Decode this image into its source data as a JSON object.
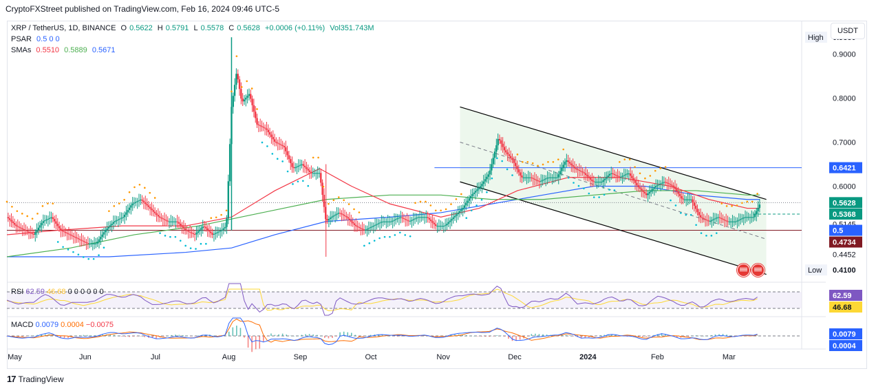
{
  "header": {
    "caption": "CryptoFXStreet published on TradingView.com, Feb 16, 2024 09:46 UTC-5"
  },
  "legend": {
    "symbol": "XRP / TetherUS, 1D, BINANCE",
    "open_label": "O",
    "open": "0.5622",
    "high_label": "H",
    "high": "0.5791",
    "low_label": "L",
    "low": "0.5578",
    "close_label": "C",
    "close": "0.5628",
    "change": "+0.0006 (+0.11%)",
    "volume": "Vol351.743M",
    "psar_label": "PSAR",
    "psar_args": "0.5  0  0",
    "sma_label": "SMAs",
    "sma1": "0.5510",
    "sma2": "0.5889",
    "sma3": "0.5671"
  },
  "currency_button": "USDT",
  "rsi": {
    "label": "RSI",
    "value": "62.59",
    "sma": "46.68",
    "args": "0  0  0  0  0  0"
  },
  "macd": {
    "label": "MACD",
    "macd": "0.0079",
    "signal": "0.0004",
    "hist": "−0.0075"
  },
  "footer": {
    "logo_text": "TradingView",
    "logo_mark": "17"
  },
  "colors": {
    "up": "#089981",
    "down": "#f23645",
    "psar": "#ff9800",
    "sma1": "#f23645",
    "sma2": "#4caf50",
    "sma3": "#2962ff",
    "channel": "#000000",
    "level": "#2962ff",
    "support": "#801922",
    "rsi": "#7e57c2",
    "rsi_ma": "#fdd835",
    "macd": "#2962ff",
    "signal": "#ff6d00"
  },
  "chart_data": {
    "type": "candlestick",
    "title": "XRP / TetherUS, 1D, BINANCE",
    "x_ticks": [
      "May",
      "Jun",
      "Jul",
      "Aug",
      "Sep",
      "Oct",
      "Nov",
      "Dec",
      "2024",
      "Feb",
      "Mar"
    ],
    "y_ticks": [
      "0.9000",
      "0.8000",
      "0.7000",
      "0.6000",
      "0.5145",
      "0.4452"
    ],
    "ylim": [
      0.39,
      0.96
    ],
    "price_labels": [
      {
        "text": "High",
        "value": "0.9380"
      },
      {
        "value": "0.6421"
      },
      {
        "value": "0.5628"
      },
      {
        "value": "0.5368"
      },
      {
        "value": "0.5"
      },
      {
        "value": "0.4734"
      },
      {
        "text": "Low",
        "value": "0.4100"
      }
    ],
    "horizontal_levels": [
      0.6421,
      0.5
    ],
    "price_path": [
      [
        0,
        0.53
      ],
      [
        7,
        0.51
      ],
      [
        14,
        0.5
      ],
      [
        21,
        0.49
      ],
      [
        28,
        0.52
      ],
      [
        35,
        0.53
      ],
      [
        42,
        0.5
      ],
      [
        49,
        0.49
      ],
      [
        56,
        0.48
      ],
      [
        63,
        0.47
      ],
      [
        70,
        0.47
      ],
      [
        77,
        0.5
      ],
      [
        84,
        0.52
      ],
      [
        91,
        0.53
      ],
      [
        98,
        0.56
      ],
      [
        105,
        0.57
      ],
      [
        112,
        0.55
      ],
      [
        119,
        0.53
      ],
      [
        126,
        0.52
      ],
      [
        133,
        0.52
      ],
      [
        140,
        0.5
      ],
      [
        147,
        0.49
      ],
      [
        154,
        0.51
      ],
      [
        161,
        0.49
      ],
      [
        168,
        0.5
      ],
      [
        172,
        0.51
      ],
      [
        176,
        0.78
      ],
      [
        180,
        0.86
      ],
      [
        184,
        0.79
      ],
      [
        190,
        0.81
      ],
      [
        196,
        0.74
      ],
      [
        203,
        0.73
      ],
      [
        210,
        0.7
      ],
      [
        217,
        0.69
      ],
      [
        224,
        0.64
      ],
      [
        231,
        0.65
      ],
      [
        238,
        0.63
      ],
      [
        245,
        0.63
      ],
      [
        250,
        0.52
      ],
      [
        254,
        0.53
      ],
      [
        260,
        0.54
      ],
      [
        266,
        0.53
      ],
      [
        273,
        0.51
      ],
      [
        280,
        0.5
      ],
      [
        287,
        0.51
      ],
      [
        294,
        0.52
      ],
      [
        301,
        0.52
      ],
      [
        308,
        0.53
      ],
      [
        315,
        0.52
      ],
      [
        322,
        0.53
      ],
      [
        329,
        0.53
      ],
      [
        336,
        0.51
      ],
      [
        343,
        0.51
      ],
      [
        350,
        0.53
      ],
      [
        357,
        0.55
      ],
      [
        364,
        0.58
      ],
      [
        371,
        0.6
      ],
      [
        378,
        0.63
      ],
      [
        385,
        0.71
      ],
      [
        390,
        0.68
      ],
      [
        396,
        0.66
      ],
      [
        403,
        0.62
      ],
      [
        410,
        0.62
      ],
      [
        417,
        0.61
      ],
      [
        424,
        0.62
      ],
      [
        431,
        0.62
      ],
      [
        438,
        0.66
      ],
      [
        445,
        0.64
      ],
      [
        452,
        0.63
      ],
      [
        459,
        0.61
      ],
      [
        466,
        0.61
      ],
      [
        473,
        0.63
      ],
      [
        480,
        0.62
      ],
      [
        487,
        0.63
      ],
      [
        494,
        0.6
      ],
      [
        501,
        0.58
      ],
      [
        508,
        0.6
      ],
      [
        515,
        0.61
      ],
      [
        522,
        0.6
      ],
      [
        529,
        0.57
      ],
      [
        536,
        0.57
      ],
      [
        543,
        0.53
      ],
      [
        550,
        0.52
      ],
      [
        557,
        0.53
      ],
      [
        564,
        0.52
      ],
      [
        571,
        0.52
      ],
      [
        578,
        0.53
      ],
      [
        585,
        0.53
      ],
      [
        590,
        0.56
      ]
    ],
    "sma_red": [
      [
        0,
        0.49
      ],
      [
        40,
        0.5
      ],
      [
        90,
        0.51
      ],
      [
        140,
        0.51
      ],
      [
        176,
        0.53
      ],
      [
        210,
        0.59
      ],
      [
        245,
        0.64
      ],
      [
        270,
        0.6
      ],
      [
        300,
        0.56
      ],
      [
        340,
        0.53
      ],
      [
        370,
        0.55
      ],
      [
        400,
        0.59
      ],
      [
        440,
        0.62
      ],
      [
        480,
        0.62
      ],
      [
        520,
        0.6
      ],
      [
        550,
        0.57
      ],
      [
        580,
        0.55
      ],
      [
        590,
        0.55
      ]
    ],
    "sma_green": [
      [
        0,
        0.44
      ],
      [
        50,
        0.46
      ],
      [
        100,
        0.49
      ],
      [
        150,
        0.51
      ],
      [
        200,
        0.54
      ],
      [
        250,
        0.57
      ],
      [
        300,
        0.58
      ],
      [
        340,
        0.58
      ],
      [
        380,
        0.57
      ],
      [
        420,
        0.57
      ],
      [
        460,
        0.58
      ],
      [
        500,
        0.59
      ],
      [
        540,
        0.59
      ],
      [
        580,
        0.58
      ],
      [
        590,
        0.58
      ]
    ],
    "sma_blue": [
      [
        0,
        0.44
      ],
      [
        80,
        0.44
      ],
      [
        140,
        0.45
      ],
      [
        176,
        0.46
      ],
      [
        210,
        0.49
      ],
      [
        250,
        0.52
      ],
      [
        300,
        0.53
      ],
      [
        340,
        0.54
      ],
      [
        380,
        0.56
      ],
      [
        420,
        0.58
      ],
      [
        460,
        0.6
      ],
      [
        500,
        0.6
      ],
      [
        540,
        0.58
      ],
      [
        580,
        0.57
      ],
      [
        590,
        0.57
      ]
    ],
    "channel": {
      "upper": [
        [
          355,
          0.78
        ],
        [
          595,
          0.57
        ]
      ],
      "lower": [
        [
          355,
          0.61
        ],
        [
          595,
          0.4
        ]
      ],
      "mid": [
        [
          355,
          0.7
        ],
        [
          595,
          0.48
        ]
      ]
    }
  }
}
